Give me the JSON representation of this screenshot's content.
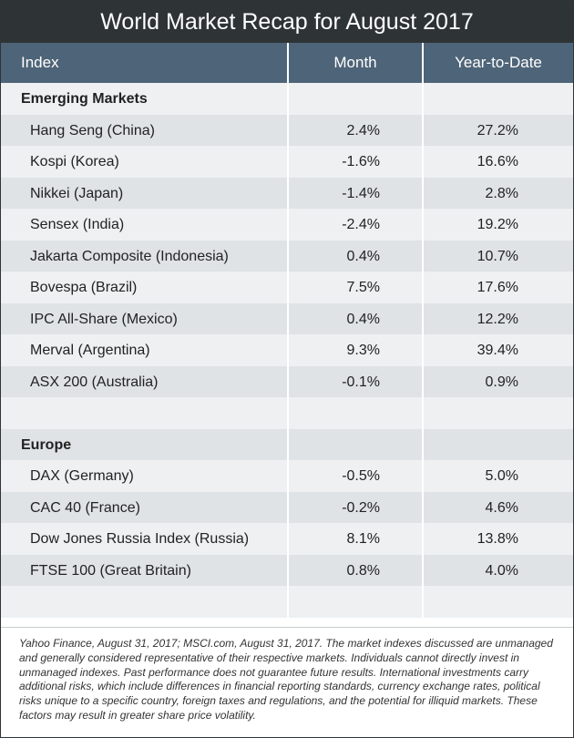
{
  "title": "World Market Recap for August 2017",
  "headers": {
    "index": "Index",
    "month": "Month",
    "ytd": "Year-to-Date"
  },
  "sections": [
    {
      "name": "Emerging Markets",
      "rows": [
        {
          "index": "Hang Seng (China)",
          "month": "2.4%",
          "ytd": "27.2%"
        },
        {
          "index": "Kospi (Korea)",
          "month": "-1.6%",
          "ytd": "16.6%"
        },
        {
          "index": "Nikkei (Japan)",
          "month": "-1.4%",
          "ytd": "2.8%"
        },
        {
          "index": "Sensex (India)",
          "month": "-2.4%",
          "ytd": "19.2%"
        },
        {
          "index": "Jakarta Composite (Indonesia)",
          "month": "0.4%",
          "ytd": "10.7%"
        },
        {
          "index": "Bovespa (Brazil)",
          "month": "7.5%",
          "ytd": "17.6%"
        },
        {
          "index": "IPC All-Share (Mexico)",
          "month": "0.4%",
          "ytd": "12.2%"
        },
        {
          "index": "Merval (Argentina)",
          "month": "9.3%",
          "ytd": "39.4%"
        },
        {
          "index": "ASX 200 (Australia)",
          "month": "-0.1%",
          "ytd": "0.9%"
        }
      ]
    },
    {
      "name": "Europe",
      "rows": [
        {
          "index": "DAX (Germany)",
          "month": "-0.5%",
          "ytd": "5.0%"
        },
        {
          "index": "CAC 40 (France)",
          "month": "-0.2%",
          "ytd": "4.6%"
        },
        {
          "index": "Dow Jones Russia Index (Russia)",
          "month": "8.1%",
          "ytd": "13.8%"
        },
        {
          "index": "FTSE 100 (Great Britain)",
          "month": "0.8%",
          "ytd": "4.0%"
        }
      ]
    }
  ],
  "footnote": "Yahoo Finance, August 31, 2017; MSCI.com, August 31, 2017. The market indexes discussed are unmanaged and generally considered representative of their respective markets. Individuals cannot directly invest in unmanaged indexes. Past performance does not guarantee future results. International investments carry additional risks, which include differences in financial reporting standards, currency exchange rates, political risks unique to a specific country, foreign taxes and regulations, and the potential for illiquid markets. These factors may result in greater share price volatility."
}
